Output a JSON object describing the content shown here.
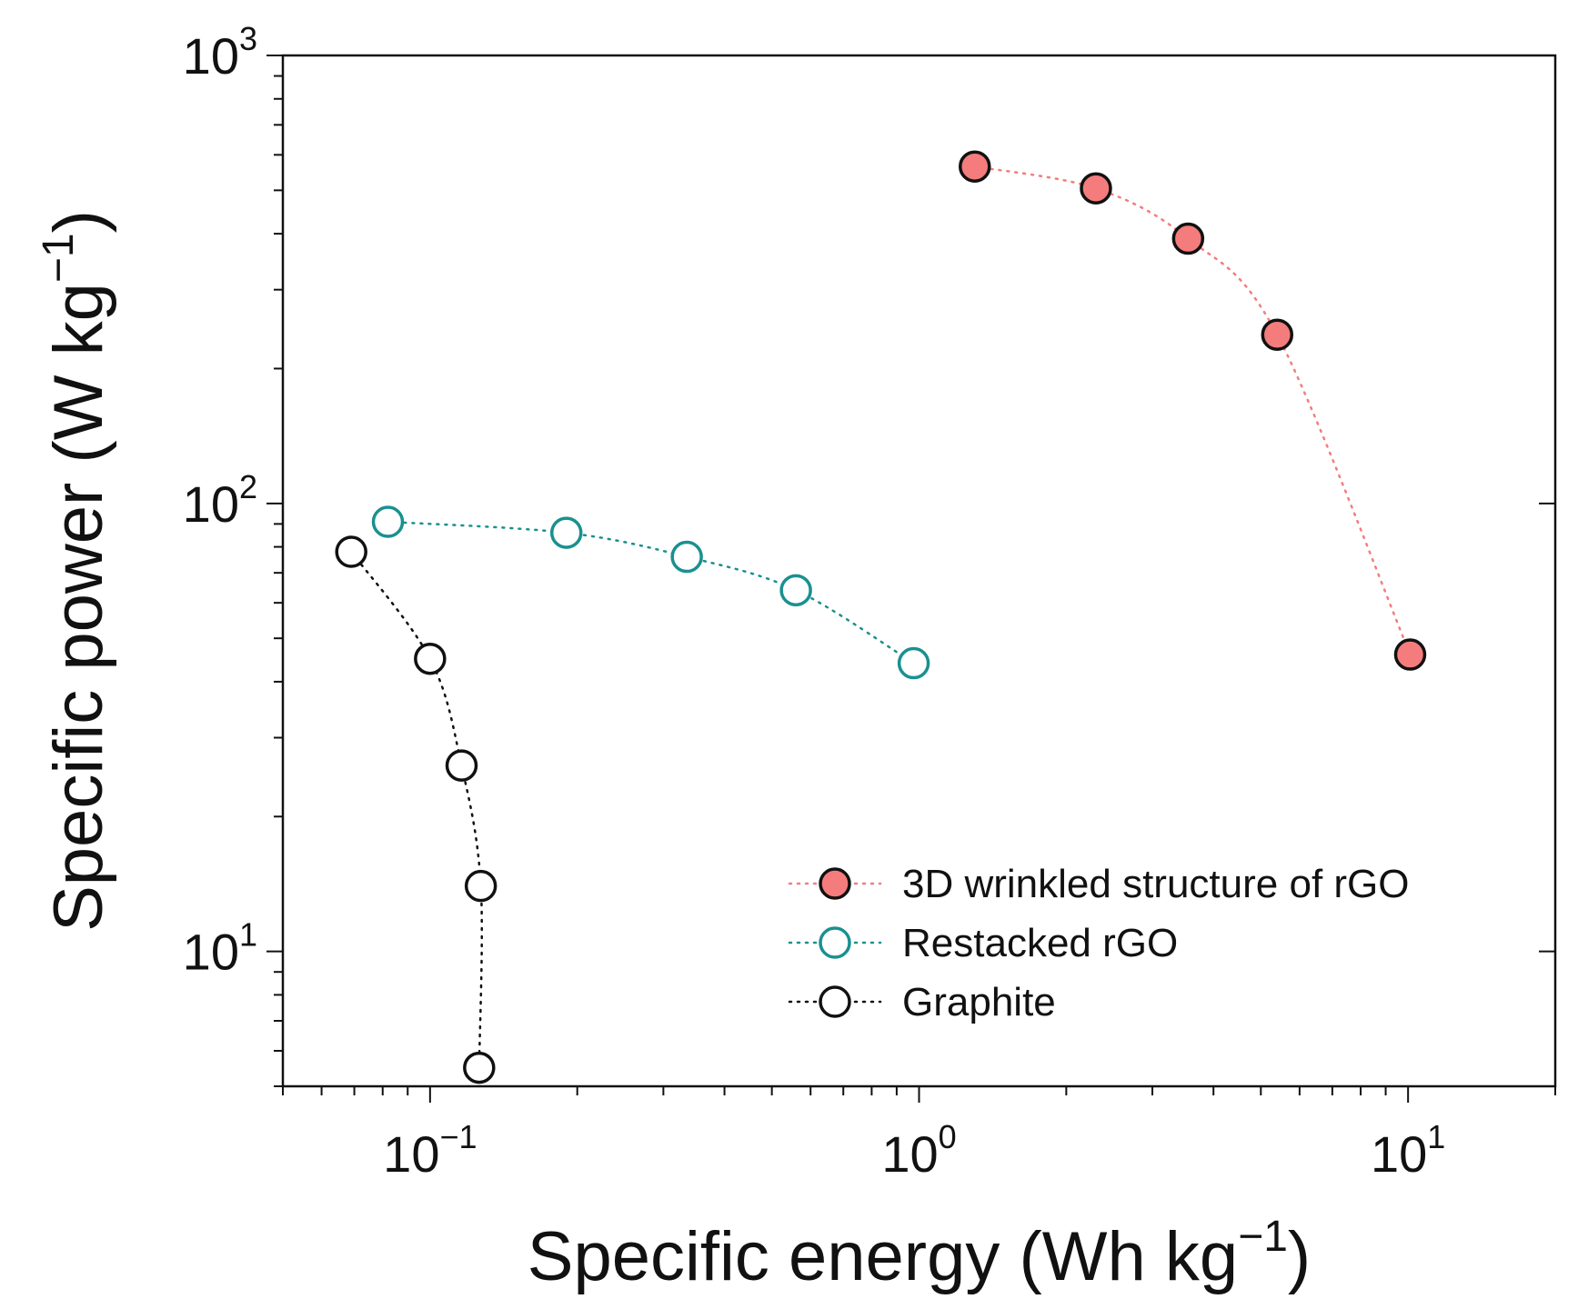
{
  "chart_data": {
    "type": "scatter",
    "title": "",
    "xlabel": "Specific energy (Wh kg",
    "xlabel_sup": "−1",
    "xlabel_close": ")",
    "ylabel": "Specific power (W kg",
    "ylabel_sup": "−1",
    "ylabel_close": ")",
    "xscale": "log",
    "yscale": "log",
    "xlim": [
      0.05,
      20
    ],
    "ylim": [
      5,
      1000
    ],
    "x_ticks": [
      {
        "base": "10",
        "exp": "-1",
        "value": 0.1
      },
      {
        "base": "10",
        "exp": "0",
        "value": 1
      },
      {
        "base": "10",
        "exp": "1",
        "value": 10
      }
    ],
    "y_ticks": [
      {
        "base": "10",
        "exp": "1",
        "value": 10
      },
      {
        "base": "10",
        "exp": "2",
        "value": 100
      },
      {
        "base": "10",
        "exp": "3",
        "value": 1000
      }
    ],
    "grid": false,
    "legend_position": "bottom-right",
    "series": [
      {
        "name": "3D wrinkled structure of rGO",
        "color": "#f47c7c",
        "marker_fill": "#f47c7c",
        "marker_edge": "#111111",
        "line_style": "dotted",
        "x": [
          1.3,
          2.3,
          3.55,
          5.4,
          10.1
        ],
        "y": [
          565,
          505,
          390,
          238,
          46
        ]
      },
      {
        "name": "Restacked rGO",
        "color": "#1a9090",
        "marker_fill": "#ffffff",
        "marker_edge": "#1a9090",
        "line_style": "dotted",
        "x": [
          0.082,
          0.19,
          0.335,
          0.56,
          0.975
        ],
        "y": [
          91,
          86,
          76,
          64,
          44
        ]
      },
      {
        "name": "Graphite",
        "color": "#111111",
        "marker_fill": "#ffffff",
        "marker_edge": "#111111",
        "line_style": "dotted",
        "x": [
          0.069,
          0.1,
          0.116,
          0.127,
          0.126
        ],
        "y": [
          78,
          45,
          26,
          14,
          5.5
        ]
      }
    ]
  }
}
